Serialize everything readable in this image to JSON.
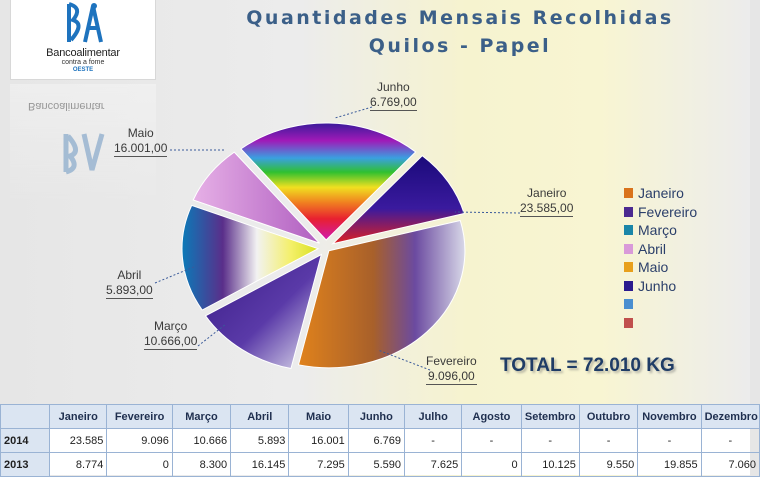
{
  "logo": {
    "name": "Bancoalimentar",
    "subtitle": "contra a fome",
    "region": "OESTE",
    "reflection_text": "Bancoalimentar"
  },
  "title_line1": "Quantidades Mensais Recolhidas",
  "title_line2": "Quilos - Papel",
  "total_text": "TOTAL = 72.010 KG",
  "chart_data": {
    "type": "pie",
    "title": "Quantidades Mensais Recolhidas Quilos - Papel",
    "unit": "kg",
    "start_angle_deg": -15,
    "slices": [
      {
        "label": "Janeiro",
        "value": 23585,
        "value_label": "23.585,00",
        "color": "#d9731c"
      },
      {
        "label": "Fevereiro",
        "value": 9096,
        "value_label": "9.096,00",
        "color": "#4b2a91"
      },
      {
        "label": "Março",
        "value": 10666,
        "value_label": "10.666,00",
        "color": "#1a86a8"
      },
      {
        "label": "Abril",
        "value": 5893,
        "value_label": "5.893,00",
        "color": "#d99ad9"
      },
      {
        "label": "Maio",
        "value": 16001,
        "value_label": "16.001,00",
        "color": "#e84a2e"
      },
      {
        "label": "Junho",
        "value": 6769,
        "value_label": "6.769,00",
        "color": "#2a1a8e"
      }
    ],
    "legend": {
      "placement": "right",
      "entries": [
        {
          "label": "Janeiro",
          "color": "#d9731c"
        },
        {
          "label": "Fevereiro",
          "color": "#4b2a91"
        },
        {
          "label": "Março",
          "color": "#1a86a8"
        },
        {
          "label": "Abril",
          "color": "#d99ad9"
        },
        {
          "label": "Maio",
          "color": "#e8a01c"
        },
        {
          "label": "Junho",
          "color": "#2a1a8e"
        },
        {
          "label": "",
          "color": "#4a8fd0"
        },
        {
          "label": "",
          "color": "#c0504d"
        }
      ]
    }
  },
  "table": {
    "headers": [
      "",
      "Janeiro",
      "Fevereiro",
      "Março",
      "Abril",
      "Maio",
      "Junho",
      "Julho",
      "Agosto",
      "Setembro",
      "Outubro",
      "Novembro",
      "Dezembro"
    ],
    "rows": [
      {
        "year": "2014",
        "cells": [
          "23.585",
          "9.096",
          "10.666",
          "5.893",
          "16.001",
          "6.769",
          "-",
          "-",
          "-",
          "-",
          "-",
          "-"
        ]
      },
      {
        "year": "2013",
        "cells": [
          "8.774",
          "0",
          "8.300",
          "16.145",
          "7.295",
          "5.590",
          "7.625",
          "0",
          "10.125",
          "9.550",
          "19.855",
          "7.060"
        ]
      }
    ]
  }
}
